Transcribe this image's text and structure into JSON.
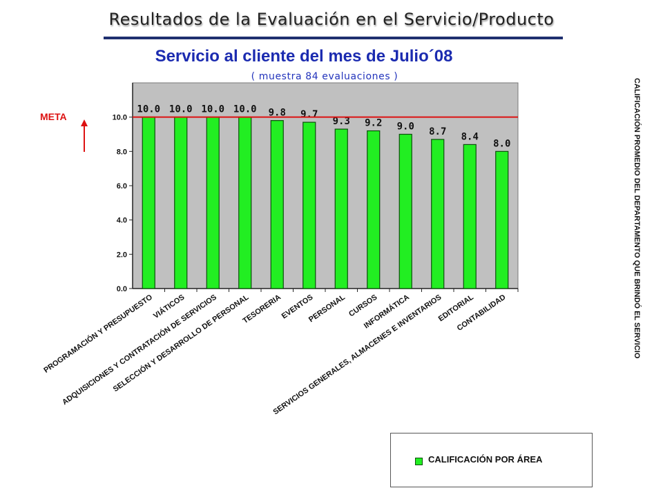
{
  "header": {
    "title": "Resultados de la Evaluación en el Servicio/Producto"
  },
  "side_label": "CALIFICACIÓN PROMEDIO DEL DEPARTAMENTO QUE BRINDÓ EL SERVICIO",
  "legend": {
    "label": "CALIFICACIÓN POR ÁREA"
  },
  "colors": {
    "bar": "#22ee22",
    "plot_area": "#c0c0c0",
    "meta_line": "#dd1111",
    "title": "#1b2bb0"
  },
  "chart_data": {
    "type": "bar",
    "title": "Servicio al cliente del mes de  Julio´08",
    "subtitle": "( muestra  84 evaluaciones )",
    "categories": [
      "PROGRAMACIÓN Y PRESUPUESTO",
      "VIÁTICOS",
      "ADQUISICIONES Y CONTRATACIÓN DE SERVICIOS",
      "SELECCIÓN Y DESARROLLO DE PERSONAL",
      "TESORERIA",
      "EVENTOS",
      "PERSONAL",
      "CURSOS",
      "INFORMÁTICA",
      "SERVICIOS GENERALES, ALMACENES E INVENTARIOS",
      "EDITORIAL",
      "CONTABILIDAD"
    ],
    "series": [
      {
        "name": "CALIFICACIÓN POR ÁREA",
        "values": [
          10.0,
          10.0,
          10.0,
          10.0,
          9.8,
          9.7,
          9.3,
          9.2,
          9.0,
          8.7,
          8.4,
          8.0
        ]
      }
    ],
    "data_labels": [
      "10.0",
      "10.0",
      "10.0",
      "10.0",
      "9.8",
      "9.7",
      "9.3",
      "9.2",
      "9.0",
      "8.7",
      "8.4",
      "8.0"
    ],
    "y_ticks": [
      "0.0",
      "2.0",
      "4.0",
      "6.0",
      "8.0",
      "10.0"
    ],
    "ylim": [
      0,
      12
    ],
    "meta": {
      "label": "META",
      "value": 10.0
    },
    "grid": false,
    "legend_position": "bottom-right"
  }
}
